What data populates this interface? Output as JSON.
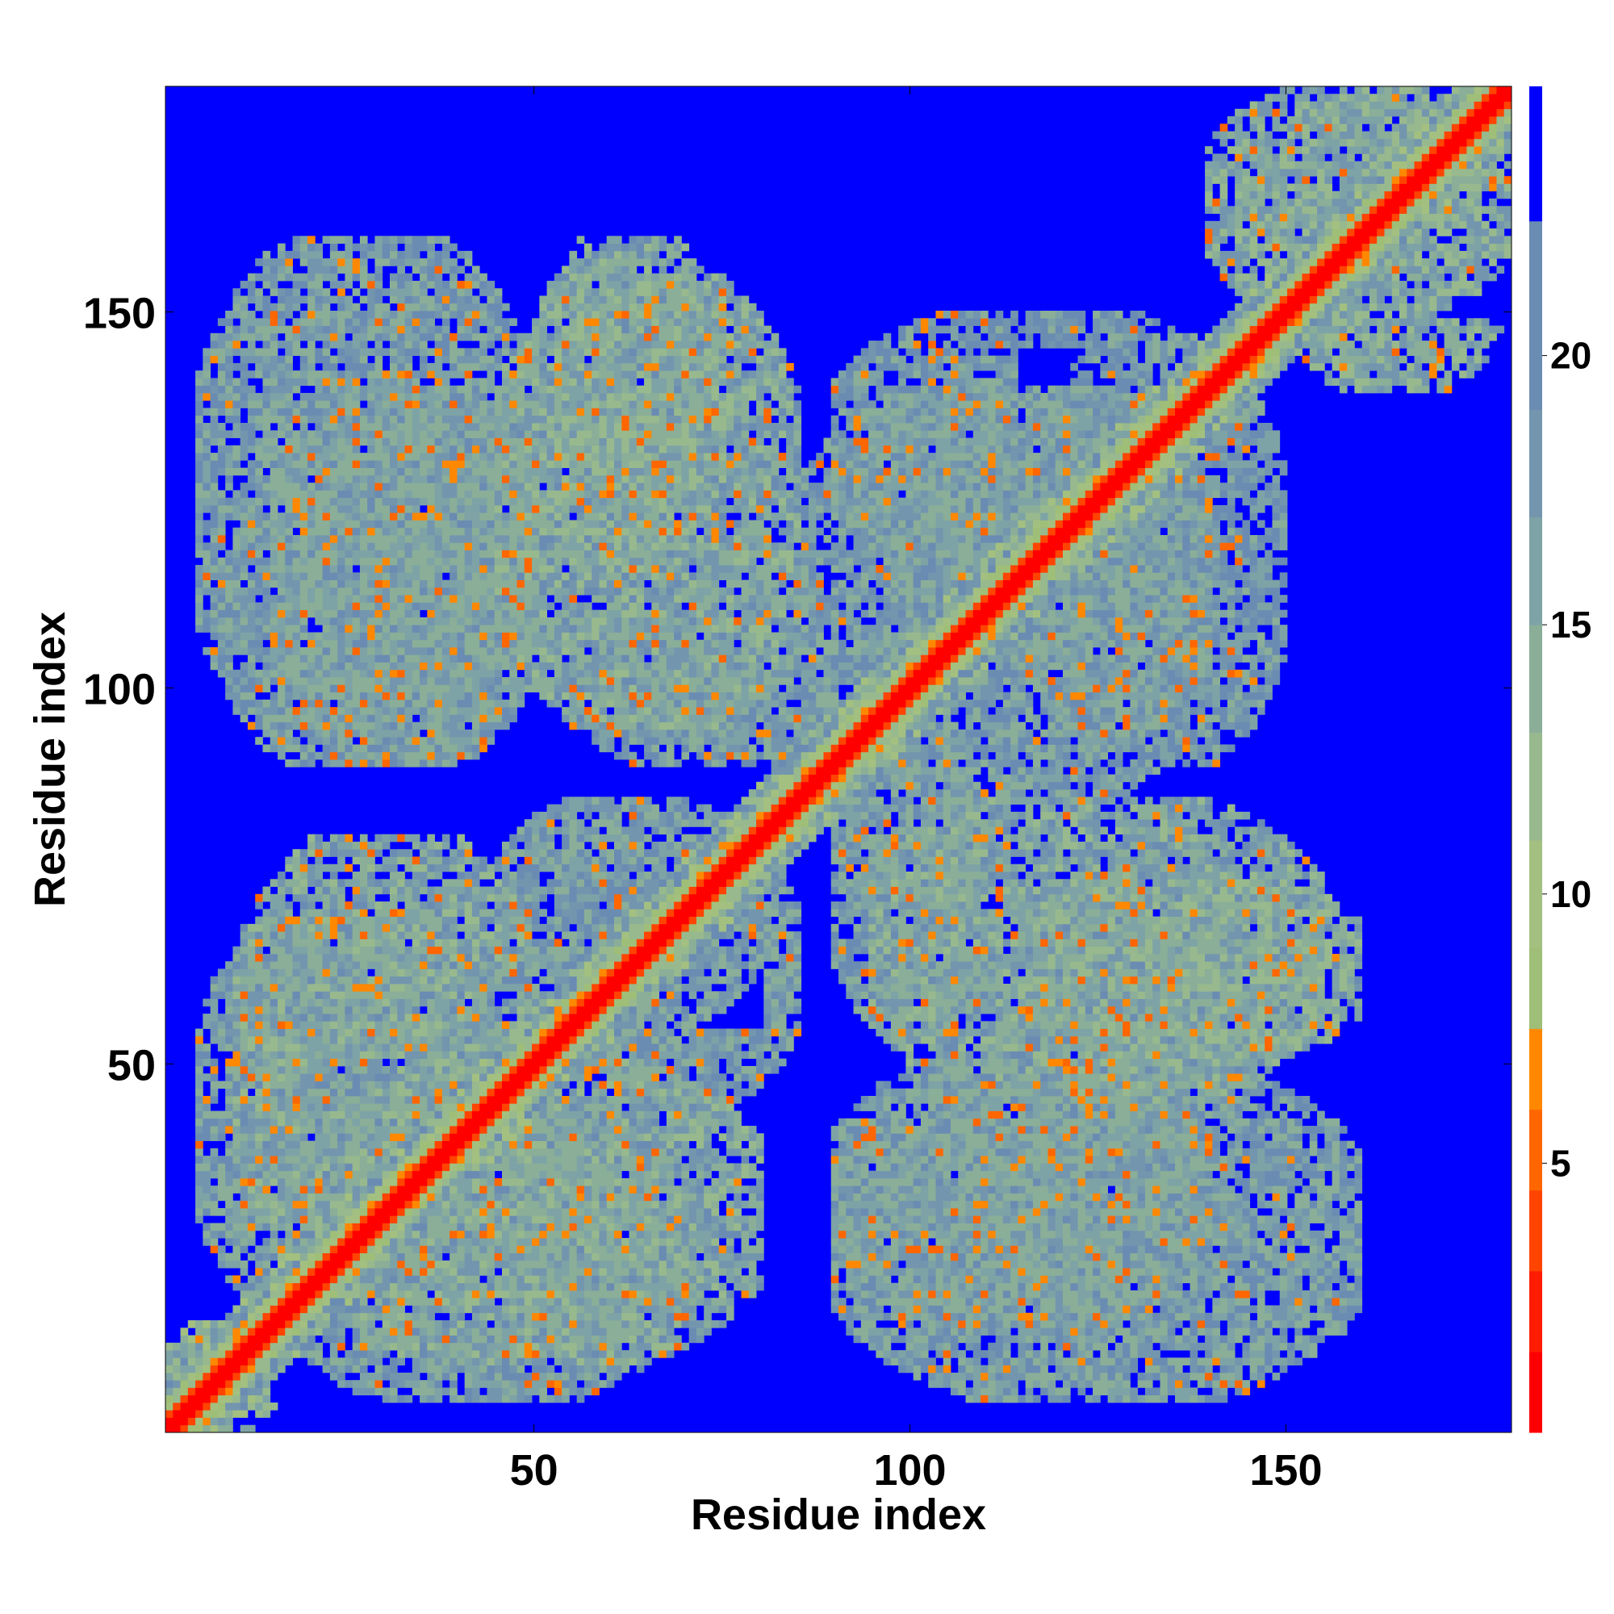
{
  "chart_data": {
    "type": "heatmap",
    "title": "",
    "xlabel": "Residue index",
    "ylabel": "Residue index",
    "xlim": [
      1,
      180
    ],
    "ylim": [
      1,
      180
    ],
    "x_ticks": [
      50,
      100,
      150
    ],
    "y_ticks": [
      50,
      100,
      150
    ],
    "colorbar": {
      "ticks": [
        5,
        10,
        15,
        20
      ],
      "levels": [
        {
          "upper": 1.5,
          "color": "#ff0000"
        },
        {
          "upper": 3,
          "color": "#ff1c00"
        },
        {
          "upper": 4.5,
          "color": "#ff4400"
        },
        {
          "upper": 6,
          "color": "#ff6600"
        },
        {
          "upper": 7.5,
          "color": "#ff8800"
        },
        {
          "upper": 9,
          "color": "#9fbe78"
        },
        {
          "upper": 11,
          "color": "#a3c080"
        },
        {
          "upper": 13,
          "color": "#98b98e"
        },
        {
          "upper": 15,
          "color": "#8aae98"
        },
        {
          "upper": 17,
          "color": "#7ea3a6"
        },
        {
          "upper": 19,
          "color": "#7396ae"
        },
        {
          "upper": 21,
          "color": "#6a8cb2"
        },
        {
          "upper": 22.5,
          "color": "#6a8cb2"
        },
        {
          "upper": 25,
          "color": "#0000ff"
        }
      ]
    },
    "matrix_description_series": {
      "n": 180,
      "background_value": 25,
      "diagonal_value": 0,
      "regions": [
        {
          "x": [
            1,
            15
          ],
          "y": [
            1,
            15
          ],
          "level": 14
        },
        {
          "x": [
            5,
            45
          ],
          "y": [
            15,
            70
          ],
          "level": 17
        },
        {
          "x": [
            20,
            80
          ],
          "y": [
            10,
            50
          ],
          "level": 16
        },
        {
          "x": [
            45,
            80
          ],
          "y": [
            55,
            85
          ],
          "level": 17
        },
        {
          "x": [
            5,
            50
          ],
          "y": [
            90,
            160
          ],
          "level": 17
        },
        {
          "x": [
            50,
            75
          ],
          "y": [
            115,
            160
          ],
          "level": 16
        },
        {
          "x": [
            55,
            90
          ],
          "y": [
            90,
            110
          ],
          "level": 17
        },
        {
          "x": [
            85,
            140
          ],
          "y": [
            90,
            140
          ],
          "level": 17
        },
        {
          "x": [
            90,
            140
          ],
          "y": [
            15,
            50
          ],
          "level": 17
        },
        {
          "x": [
            95,
            155
          ],
          "y": [
            45,
            85
          ],
          "level": 16
        },
        {
          "x": [
            140,
            180
          ],
          "y": [
            150,
            180
          ],
          "level": 15
        },
        {
          "x": [
            115,
            150
          ],
          "y": [
            90,
            145
          ],
          "level": 18
        }
      ]
    }
  }
}
